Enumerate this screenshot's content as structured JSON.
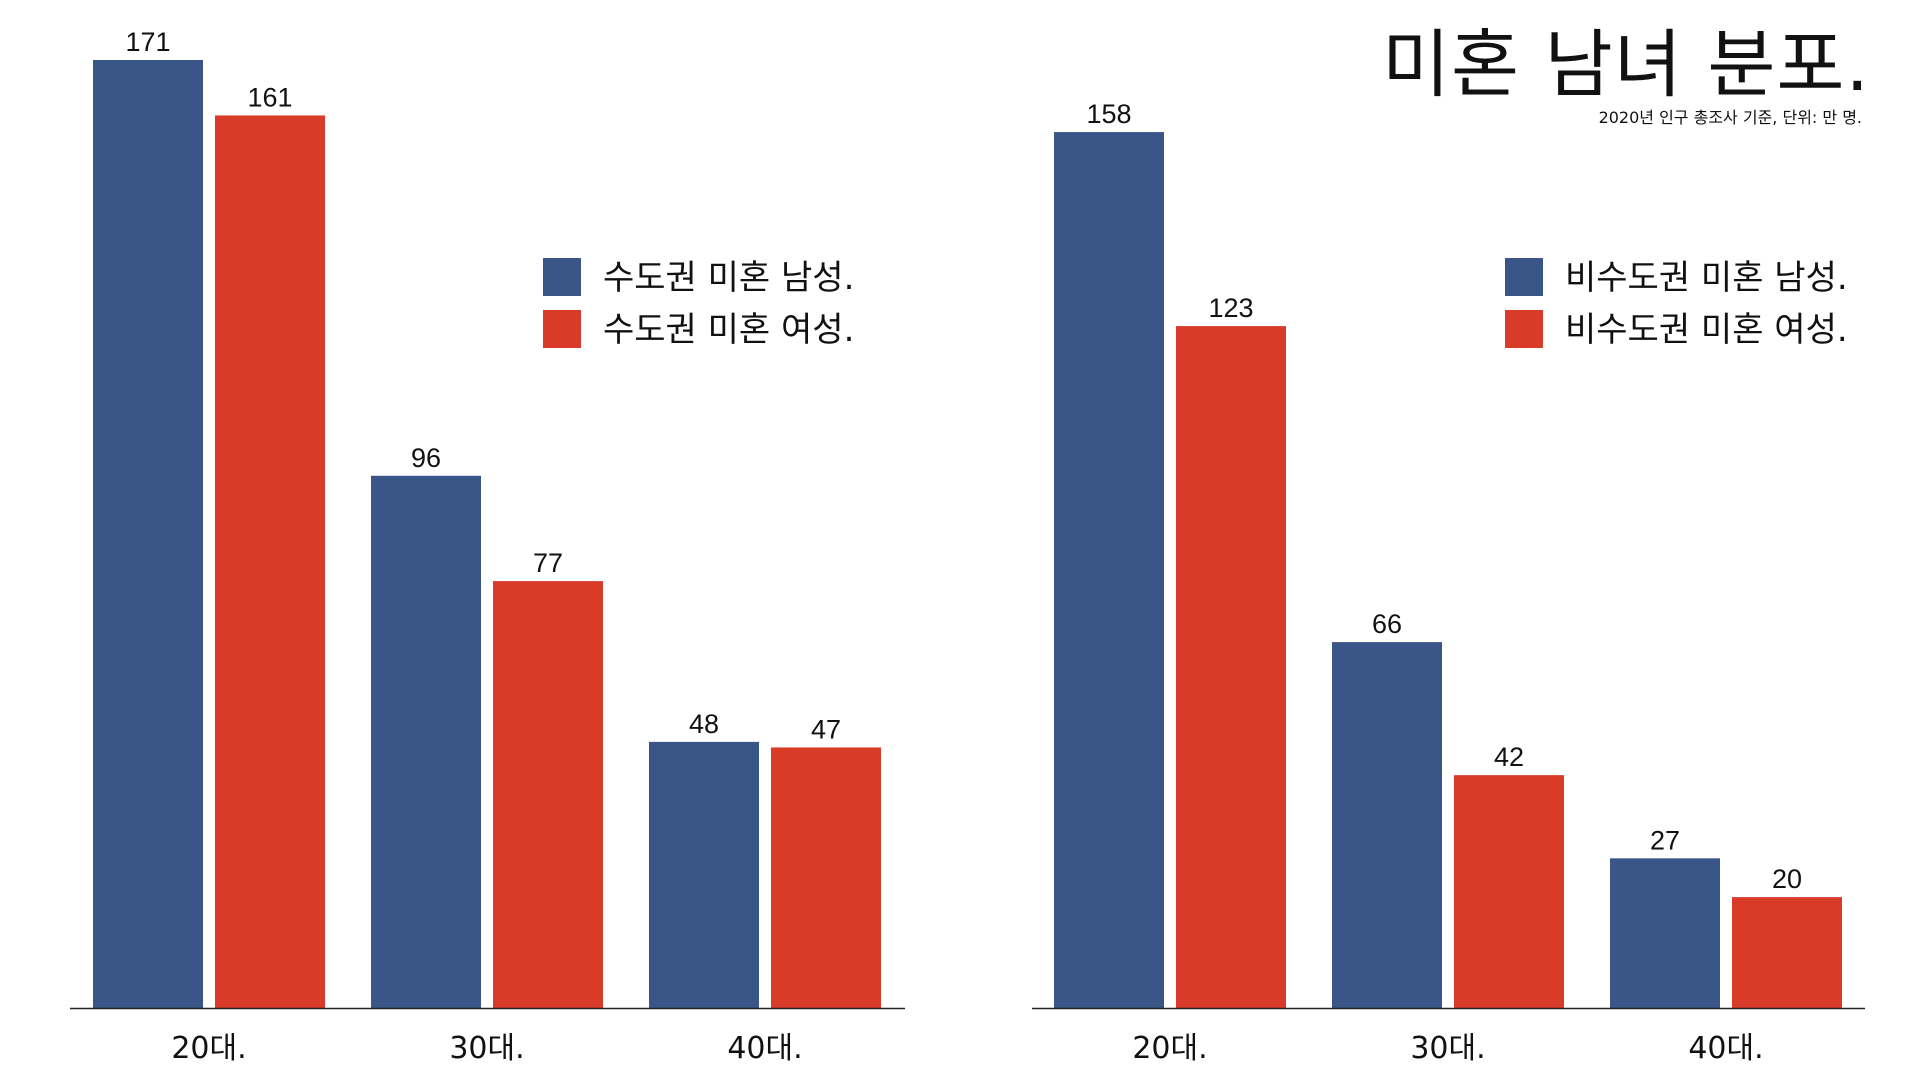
{
  "title": "미혼 남녀 분포.",
  "subtitle": "2020년 인구 총조사 기준, 단위: 만 명.",
  "colors": {
    "male": "#3a5587",
    "female": "#d83b27",
    "axis": "#222222"
  },
  "chart_data": [
    {
      "type": "bar",
      "categories": [
        "20대.",
        "30대.",
        "40대."
      ],
      "series": [
        {
          "name": "수도권 미혼 남성.",
          "color": "#3a5587",
          "values": [
            171,
            96,
            48
          ]
        },
        {
          "name": "수도권 미혼 여성.",
          "color": "#d83b27",
          "values": [
            161,
            77,
            47
          ]
        }
      ],
      "ylim": [
        0,
        171
      ],
      "grid": false,
      "legend_placement": "right-upper"
    },
    {
      "type": "bar",
      "categories": [
        "20대.",
        "30대.",
        "40대."
      ],
      "series": [
        {
          "name": "비수도권 미혼 남성.",
          "color": "#3a5587",
          "values": [
            158,
            66,
            27
          ]
        },
        {
          "name": "비수도권 미혼 여성.",
          "color": "#d83b27",
          "values": [
            123,
            42,
            20
          ]
        }
      ],
      "ylim": [
        0,
        171
      ],
      "grid": false,
      "legend_placement": "right-upper"
    }
  ]
}
